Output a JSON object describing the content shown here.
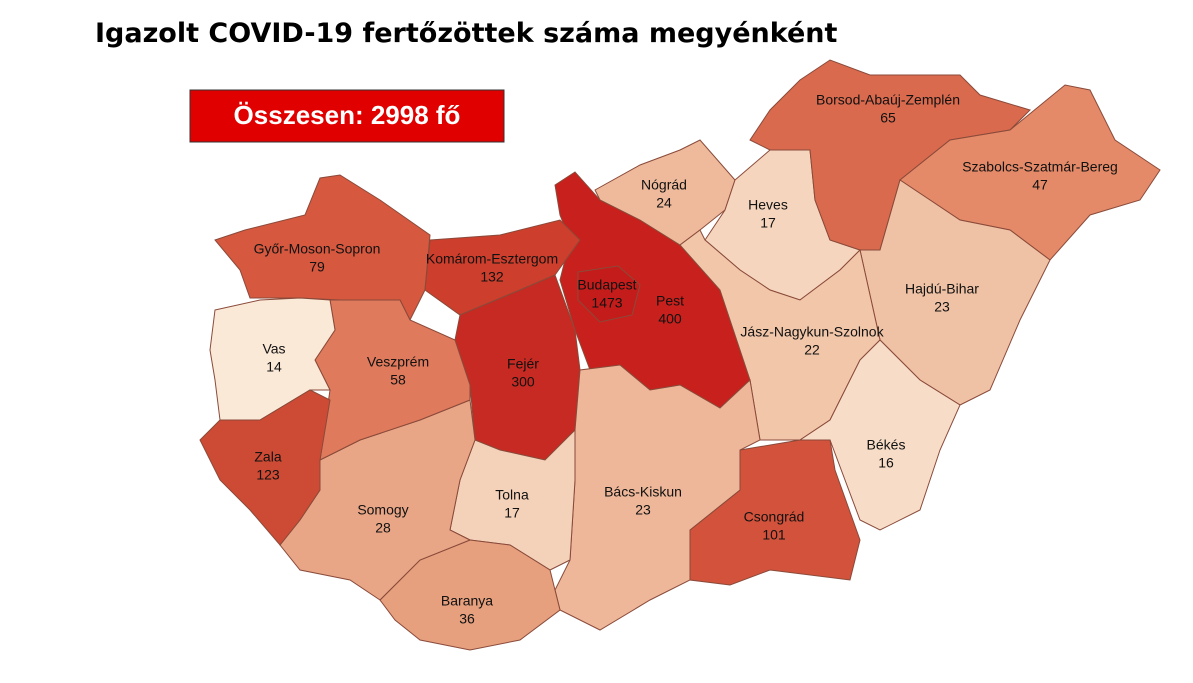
{
  "title": "Igazolt COVID-19 fertőzöttek száma megyénként",
  "total_label": "Összesen: 2998 fő",
  "regions": [
    {
      "name": "Győr-Moson-Sopron",
      "value": 79,
      "color": "#d5583f"
    },
    {
      "name": "Pest",
      "value": 400,
      "color": "#c8201c"
    },
    {
      "name": "Komárom-Esztergom",
      "value": 132,
      "color": "#cd3e2c"
    },
    {
      "name": "Fejér",
      "value": 300,
      "color": "#c62a22"
    },
    {
      "name": "Budapest",
      "value": 1473,
      "color": "#c41c1a"
    },
    {
      "name": "Nógrád",
      "value": 24,
      "color": "#eeba9b"
    },
    {
      "name": "Heves",
      "value": 17,
      "color": "#f5d5bd"
    },
    {
      "name": "Borsod-Abaúj-Zemplén",
      "value": 65,
      "color": "#d96a4e"
    },
    {
      "name": "Szabolcs-Szatmár-Bereg",
      "value": 47,
      "color": "#e48a68"
    },
    {
      "name": "Hajdú-Bihar",
      "value": 23,
      "color": "#f0c2a5"
    },
    {
      "name": "Jász-Nagykun-Szolnok",
      "value": 22,
      "color": "#f1c6a9"
    },
    {
      "name": "Békés",
      "value": 16,
      "color": "#f7ddc8"
    },
    {
      "name": "Csongrád",
      "value": 101,
      "color": "#d3523b"
    },
    {
      "name": "Bács-Kiskun",
      "value": 23,
      "color": "#eeb799"
    },
    {
      "name": "Tolna",
      "value": 17,
      "color": "#f4d2ba"
    },
    {
      "name": "Baranya",
      "value": 36,
      "color": "#e6a07e"
    },
    {
      "name": "Somogy",
      "value": 28,
      "color": "#e8a686"
    },
    {
      "name": "Veszprém",
      "value": 58,
      "color": "#df7a5c"
    },
    {
      "name": "Vas",
      "value": 14,
      "color": "#fbe9d8"
    },
    {
      "name": "Zala",
      "value": 123,
      "color": "#cd4a34"
    }
  ]
}
